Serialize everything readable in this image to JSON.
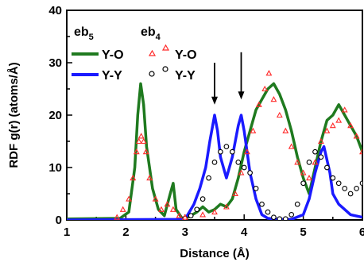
{
  "chart_data": {
    "type": "line",
    "title": "",
    "xlabel": "Distance (Å)",
    "ylabel": "RDF g(r) (atoms/Å)",
    "xlim": [
      1,
      6
    ],
    "ylim": [
      0,
      40
    ],
    "xticks": [
      1,
      2,
      3,
      4,
      5,
      6
    ],
    "yticks": [
      0,
      10,
      20,
      30,
      40
    ],
    "grid": false,
    "legend_groups": [
      {
        "title_base": "eb",
        "title_sub": "5",
        "placement": "top-left"
      },
      {
        "title_base": "eb",
        "title_sub": "4",
        "placement": "top-center"
      }
    ],
    "series": [
      {
        "name": "Y-O",
        "group": "eb5",
        "style": "line",
        "color": "#1f7a1f",
        "x": [
          1.0,
          1.9,
          2.05,
          2.15,
          2.2,
          2.25,
          2.3,
          2.35,
          2.45,
          2.55,
          2.65,
          2.75,
          2.8,
          2.85,
          2.95,
          3.05,
          3.2,
          3.3,
          3.4,
          3.5,
          3.6,
          3.7,
          3.8,
          3.9,
          4.0,
          4.1,
          4.2,
          4.3,
          4.4,
          4.5,
          4.6,
          4.7,
          4.8,
          4.9,
          5.0,
          5.1,
          5.2,
          5.3,
          5.4,
          5.5,
          5.6,
          5.7,
          5.8,
          5.9,
          6.0
        ],
        "y": [
          0.2,
          0.3,
          1.5,
          10,
          20,
          26,
          22,
          14,
          6,
          2,
          0.8,
          5,
          7,
          2,
          0.3,
          0.5,
          1.5,
          2.5,
          1.5,
          2.0,
          3.0,
          2.5,
          4.0,
          8.0,
          13,
          17,
          21,
          23,
          25,
          26,
          24,
          21,
          17,
          12,
          8,
          5,
          10,
          15,
          19,
          20,
          22,
          20,
          18,
          16,
          13
        ]
      },
      {
        "name": "Y-Y",
        "group": "eb5",
        "style": "line",
        "color": "#1a1aff",
        "x": [
          1.0,
          3.0,
          3.15,
          3.25,
          3.35,
          3.42,
          3.5,
          3.55,
          3.6,
          3.7,
          3.75,
          3.8,
          3.9,
          3.95,
          4.0,
          4.05,
          4.1,
          4.2,
          4.3,
          4.4,
          4.6,
          4.8,
          5.0,
          5.1,
          5.2,
          5.3,
          5.35,
          5.45,
          5.5,
          5.6,
          5.7,
          5.8,
          6.0
        ],
        "y": [
          0.0,
          0.1,
          3.0,
          6.0,
          10,
          15,
          20,
          17,
          12,
          8,
          10,
          12,
          18,
          20,
          17,
          13,
          9,
          4,
          1,
          0.3,
          0.1,
          0.1,
          1.0,
          4.0,
          9.0,
          13,
          14,
          9,
          5,
          3,
          2,
          1,
          0.5
        ]
      },
      {
        "name": "Y-O",
        "group": "eb4",
        "style": "triangle-markers",
        "color": "#ff2a2a",
        "x": [
          1.85,
          1.95,
          2.05,
          2.12,
          2.18,
          2.22,
          2.26,
          2.3,
          2.34,
          2.4,
          2.5,
          2.6,
          2.7,
          2.8,
          2.9,
          3.0,
          3.3,
          3.5,
          3.7,
          3.85,
          3.95,
          4.05,
          4.15,
          4.25,
          4.35,
          4.42,
          4.5,
          4.6,
          4.7,
          4.8,
          4.9,
          5.0,
          5.1,
          5.2,
          5.3,
          5.4,
          5.5,
          5.6,
          5.7,
          5.8,
          5.9,
          6.0
        ],
        "y": [
          0.5,
          2.0,
          4.0,
          8.0,
          13,
          15,
          16,
          15,
          13,
          8.0,
          4.0,
          2.0,
          3.0,
          2.0,
          0.8,
          0.5,
          1.0,
          1.5,
          2.5,
          5.0,
          9.0,
          13,
          17,
          22,
          25,
          28,
          23,
          20,
          17,
          14,
          11,
          9.0,
          8.0,
          11,
          15,
          17,
          18,
          19,
          21,
          18,
          16,
          13
        ]
      },
      {
        "name": "Y-Y",
        "group": "eb4",
        "style": "circle-markers",
        "color": "#000000",
        "x": [
          3.0,
          3.1,
          3.2,
          3.3,
          3.4,
          3.5,
          3.6,
          3.7,
          3.8,
          3.9,
          4.0,
          4.1,
          4.2,
          4.3,
          4.4,
          4.5,
          4.6,
          4.7,
          4.8,
          4.9,
          5.0,
          5.1,
          5.2,
          5.3,
          5.4,
          5.5,
          5.6,
          5.7,
          5.8,
          5.9,
          6.0
        ],
        "y": [
          0.3,
          0.8,
          2.0,
          4.0,
          8.0,
          11,
          13,
          14,
          13,
          11,
          10,
          9.0,
          6.0,
          3.0,
          1.5,
          0.5,
          0.2,
          0.2,
          1.0,
          3.0,
          7.0,
          11,
          13,
          12,
          10,
          8.0,
          7.0,
          6.0,
          5.0,
          6.0,
          7.0
        ]
      }
    ],
    "annotations": [
      {
        "type": "down-arrow",
        "x": 3.5,
        "y_from": 30,
        "y_to": 22
      },
      {
        "type": "down-arrow",
        "x": 3.95,
        "y_from": 32,
        "y_to": 23
      }
    ]
  }
}
